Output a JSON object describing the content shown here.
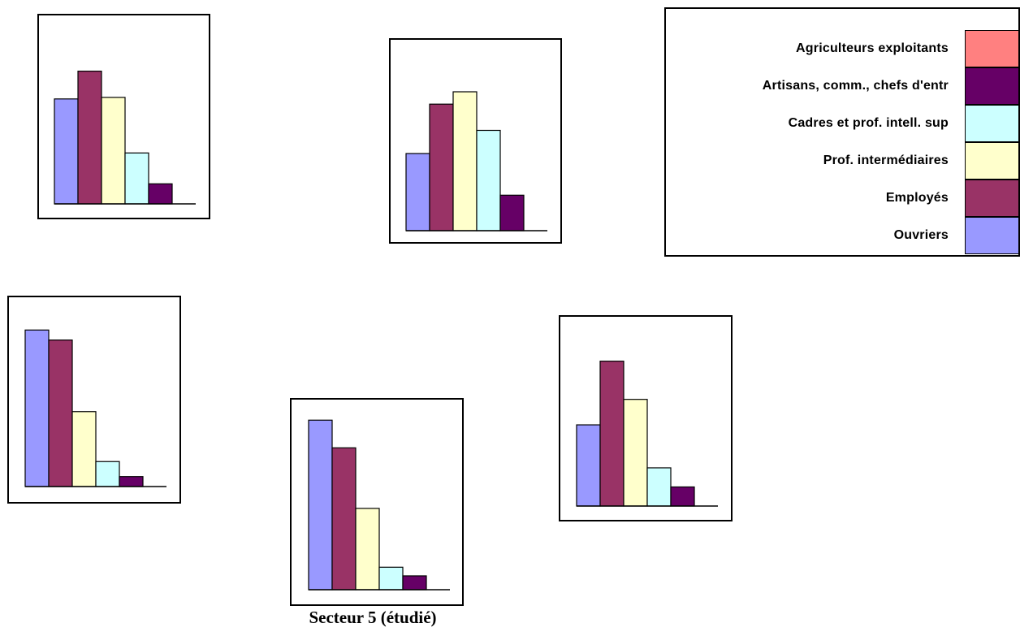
{
  "colors": {
    "agriculteurs": "#ff8080",
    "artisans": "#660066",
    "cadres": "#ccffff",
    "prof_inter": "#ffffcc",
    "employes": "#993366",
    "ouvriers": "#9999ff"
  },
  "legend": {
    "items": [
      {
        "label": "Agriculteurs exploitants",
        "color_key": "agriculteurs"
      },
      {
        "label": "Artisans, comm., chefs d'entr",
        "color_key": "artisans"
      },
      {
        "label": "Cadres et prof. intell. sup",
        "color_key": "cadres"
      },
      {
        "label": "Prof. intermédiaires",
        "color_key": "prof_inter"
      },
      {
        "label": "Employés",
        "color_key": "employes"
      },
      {
        "label": "Ouvriers",
        "color_key": "ouvriers"
      }
    ]
  },
  "caption": "Secteur 5 (étudié)",
  "chart_data": [
    {
      "type": "bar",
      "categories": [
        "Ouvriers",
        "Employés",
        "Prof. intermédiaires",
        "Cadres et prof. intell. sup",
        "Artisans, comm., chefs d'entr"
      ],
      "values": [
        68,
        86,
        69,
        33,
        13
      ],
      "ylim": [
        0,
        100
      ]
    },
    {
      "type": "bar",
      "categories": [
        "Ouvriers",
        "Employés",
        "Prof. intermédiaires",
        "Cadres et prof. intell. sup",
        "Artisans, comm., chefs d'entr"
      ],
      "values": [
        50,
        82,
        90,
        65,
        23
      ],
      "ylim": [
        0,
        100
      ]
    },
    {
      "type": "bar",
      "categories": [
        "Ouvriers",
        "Employés",
        "Prof. intermédiaires",
        "Cadres et prof. intell. sup",
        "Artisans, comm., chefs d'entr"
      ],
      "values": [
        94,
        88,
        45,
        15,
        6
      ],
      "ylim": [
        0,
        100
      ]
    },
    {
      "type": "bar",
      "categories": [
        "Ouvriers",
        "Employés",
        "Prof. intermédiaires",
        "Cadres et prof. intell. sup",
        "Artisans, comm., chefs d'entr"
      ],
      "values": [
        98,
        82,
        47,
        13,
        8
      ],
      "ylim": [
        0,
        100
      ]
    },
    {
      "type": "bar",
      "categories": [
        "Ouvriers",
        "Employés",
        "Prof. intermédiaires",
        "Cadres et prof. intell. sup",
        "Artisans, comm., chefs d'entr"
      ],
      "values": [
        51,
        91,
        67,
        24,
        12
      ],
      "ylim": [
        0,
        100
      ]
    }
  ]
}
